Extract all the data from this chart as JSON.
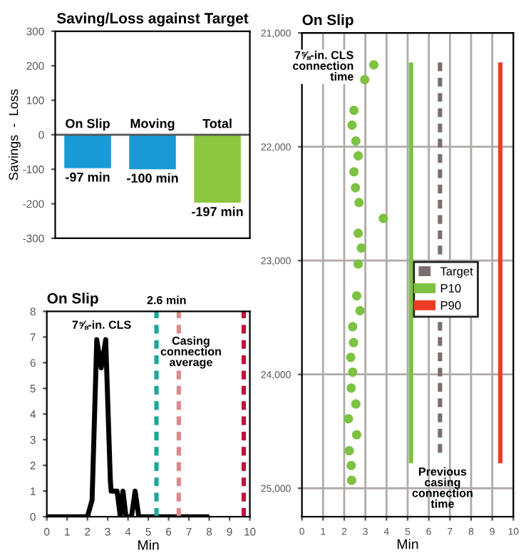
{
  "chart_data": [
    {
      "type": "bar",
      "title": "Saving/Loss against Target",
      "ylabel": "Savings  -  Loss",
      "categories": [
        "On Slip",
        "Moving",
        "Total"
      ],
      "values": [
        -97,
        -100,
        -197
      ],
      "colors": [
        "#1a9ad6",
        "#1a9ad6",
        "#8cc63f"
      ],
      "value_labels": [
        "-97 min",
        "-100 min",
        "-197 min"
      ],
      "ylim": [
        -300,
        300
      ],
      "yticks": [
        -300,
        -200,
        -100,
        0,
        100,
        200,
        300
      ],
      "grid": false
    },
    {
      "type": "line",
      "title": "On Slip",
      "xlabel": "Min",
      "x": [
        0,
        2.0,
        2.23,
        2.46,
        2.68,
        2.9,
        3.13,
        3.17,
        3.46,
        3.62,
        3.75,
        3.9,
        4.17,
        4.35,
        4.53,
        8.0
      ],
      "series": [
        {
          "color": "#000000",
          "values": [
            0,
            0,
            0.65,
            6.9,
            5.8,
            6.9,
            1.4,
            1.0,
            1.0,
            0,
            1.0,
            0,
            0,
            1.0,
            0,
            0
          ]
        }
      ],
      "ref_lines": [
        {
          "axis": "x",
          "value": 5.4,
          "color": "#1aa89a",
          "line_style": "dashed"
        },
        {
          "axis": "x",
          "value": 6.5,
          "color": "#e0868a",
          "line_style": "dashed"
        },
        {
          "axis": "x",
          "value": 9.7,
          "color": "#c0143c",
          "line_style": "dashed"
        }
      ],
      "annotations": [
        "7⅝-in. CLS",
        "2.6 min",
        "Casing\nconnection\naverage"
      ],
      "xlim": [
        0,
        10
      ],
      "ylim": [
        0,
        8
      ],
      "xticks": [
        0,
        1,
        2,
        3,
        4,
        5,
        6,
        7,
        8,
        9,
        10
      ],
      "yticks": [
        0,
        1,
        2,
        3,
        4,
        5,
        6,
        7,
        8
      ],
      "grid": false,
      "line_style": "solid",
      "marker": "none"
    },
    {
      "type": "scatter",
      "title": "On Slip",
      "xlabel": "Min",
      "series": [
        {
          "type": "scatter",
          "color": "#7dc242",
          "marker": "circle",
          "x": [
            3.4,
            2.97,
            2.46,
            2.37,
            2.55,
            2.66,
            2.46,
            2.53,
            2.7,
            3.85,
            2.66,
            2.81,
            2.66,
            2.59,
            2.75,
            2.4,
            2.44,
            2.31,
            2.4,
            2.33,
            2.55,
            2.2,
            2.59,
            2.24,
            2.33,
            2.35
          ],
          "values": [
            21280,
            21410,
            21680,
            21810,
            21950,
            22080,
            22220,
            22360,
            22490,
            22630,
            22760,
            22890,
            23030,
            23310,
            23440,
            23580,
            23720,
            23850,
            23980,
            24120,
            24260,
            24390,
            24530,
            24670,
            24800,
            24930
          ]
        },
        {
          "type": "line",
          "name": "Target",
          "color": "#7a6e6e",
          "line_style": "dashed",
          "x": [
            6.53,
            6.53
          ],
          "values": [
            21260,
            24700
          ]
        },
        {
          "type": "line",
          "name": "P10",
          "color": "#7dc242",
          "line_style": "solid",
          "x": [
            5.16,
            5.16
          ],
          "values": [
            21260,
            24780
          ]
        },
        {
          "type": "line",
          "name": "P90",
          "color": "#ef3b24",
          "line_style": "solid",
          "x": [
            9.38,
            9.38
          ],
          "values": [
            21260,
            24780
          ]
        }
      ],
      "annotations": [
        "7⅝-in. CLS\nconnection\ntime",
        "Previous\ncasing\nconnection\ntime"
      ],
      "xlim": [
        0,
        10
      ],
      "ylim": [
        25250,
        21000
      ],
      "xticks": [
        0,
        1,
        2,
        3,
        4,
        5,
        6,
        7,
        8,
        9,
        10
      ],
      "yticks": [
        {
          "value": 21000,
          "label": "21,000"
        },
        {
          "value": 22000,
          "label": "22,000"
        },
        {
          "value": 23000,
          "label": "23,000"
        },
        {
          "value": 24000,
          "label": "24,000"
        },
        {
          "value": 25000,
          "label": "25,000"
        }
      ],
      "grid": true,
      "legend": "center right"
    }
  ]
}
